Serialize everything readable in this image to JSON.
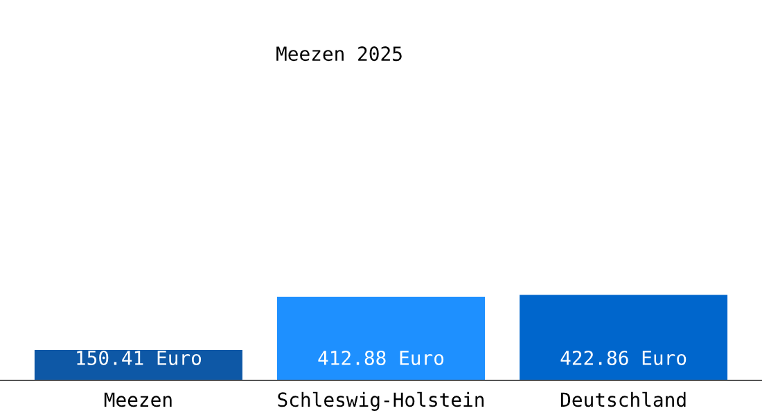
{
  "chart_data": {
    "type": "bar",
    "title": "Meezen 2025",
    "categories": [
      "Meezen",
      "Schleswig-Holstein",
      "Deutschland"
    ],
    "values": [
      150.41,
      412.88,
      422.86
    ],
    "colors": [
      "#0e58a6",
      "#1e90ff",
      "#0066cc"
    ],
    "value_labels": [
      "150.41 Euro",
      "412.88 Euro",
      "422.86 Euro"
    ],
    "grid": false,
    "legend": false
  }
}
